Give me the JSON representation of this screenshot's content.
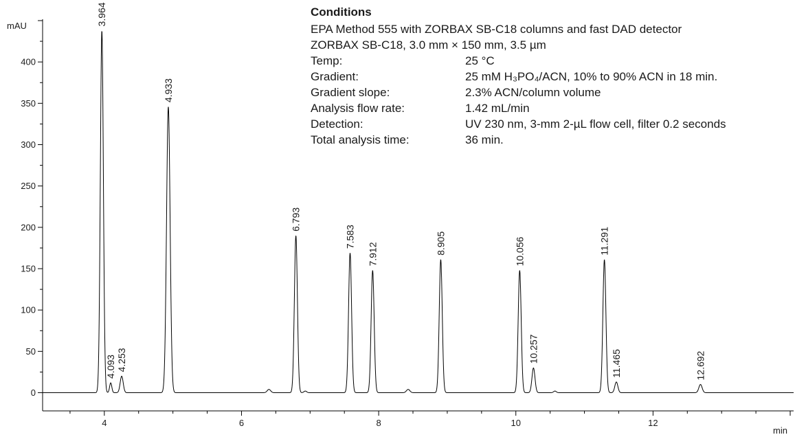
{
  "conditions": {
    "heading": "Conditions",
    "line1": "EPA Method 555 with ZORBAX SB-C18 columns and fast DAD detector",
    "line2": "ZORBAX SB-C18, 3.0 mm × 150 mm, 3.5 µm",
    "rows": [
      {
        "key": "Temp:",
        "value": "25 °C"
      },
      {
        "key": "Gradient:",
        "value": "25 mM H₃PO₄/ACN, 10% to 90% ACN in 18 min."
      },
      {
        "key": "Gradient slope:",
        "value": "2.3% ACN/column volume"
      },
      {
        "key": "Analysis flow rate:",
        "value": "1.42 mL/min"
      },
      {
        "key": "Detection:",
        "value": "UV 230 nm, 3-mm 2-µL flow cell, filter 0.2 seconds"
      },
      {
        "key": "Total analysis time:",
        "value": "36 min."
      }
    ]
  },
  "chart_data": {
    "type": "line",
    "title": "",
    "xlabel": "min",
    "ylabel": "mAU",
    "xlim": [
      3.1,
      14.05
    ],
    "ylim": [
      -22,
      450
    ],
    "xticks": [
      4,
      6,
      8,
      10,
      12
    ],
    "yticks": [
      0,
      50,
      100,
      150,
      200,
      250,
      300,
      350,
      400
    ],
    "grid": false,
    "baseline": 0,
    "peaks": [
      {
        "rt": 3.964,
        "label": "3.964",
        "height": 438,
        "width": 0.022
      },
      {
        "rt": 4.093,
        "label": "4.093",
        "height": 12,
        "width": 0.016
      },
      {
        "rt": 4.253,
        "label": "4.253",
        "height": 20,
        "width": 0.022
      },
      {
        "rt": 4.933,
        "label": "4.933",
        "height": 346,
        "width": 0.026
      },
      {
        "rt": 6.793,
        "label": "6.793",
        "height": 190,
        "width": 0.022
      },
      {
        "rt": 7.583,
        "label": "7.583",
        "height": 169,
        "width": 0.022
      },
      {
        "rt": 7.912,
        "label": "7.912",
        "height": 148,
        "width": 0.022
      },
      {
        "rt": 8.905,
        "label": "8.905",
        "height": 161,
        "width": 0.022
      },
      {
        "rt": 10.056,
        "label": "10.056",
        "height": 148,
        "width": 0.022
      },
      {
        "rt": 10.257,
        "label": "10.257",
        "height": 30,
        "width": 0.022
      },
      {
        "rt": 11.291,
        "label": "11.291",
        "height": 161,
        "width": 0.022
      },
      {
        "rt": 11.465,
        "label": "11.465",
        "height": 13,
        "width": 0.022
      },
      {
        "rt": 12.692,
        "label": "12.692",
        "height": 10,
        "width": 0.024
      }
    ],
    "minor_peaks": [
      {
        "rt": 6.4,
        "height": 4,
        "width": 0.025
      },
      {
        "rt": 6.93,
        "height": 2,
        "width": 0.02
      },
      {
        "rt": 8.43,
        "height": 4,
        "width": 0.025
      },
      {
        "rt": 10.57,
        "height": 2,
        "width": 0.02
      }
    ]
  }
}
